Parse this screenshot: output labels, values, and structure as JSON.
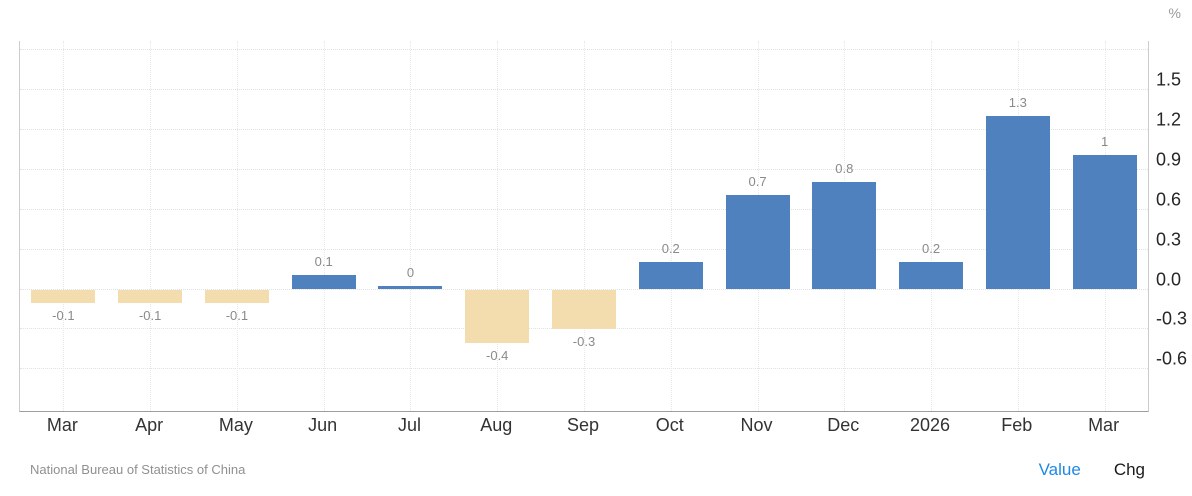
{
  "chart_data": {
    "type": "bar",
    "title": "",
    "unit": "%",
    "categories": [
      "Mar",
      "Apr",
      "May",
      "Jun",
      "Jul",
      "Aug",
      "Sep",
      "Oct",
      "Nov",
      "Dec",
      "2026",
      "Feb",
      "Mar"
    ],
    "values": [
      -0.1,
      -0.1,
      -0.1,
      0.1,
      0,
      -0.4,
      -0.3,
      0.2,
      0.7,
      0.8,
      0.2,
      1.3,
      1
    ],
    "bar_labels": [
      "-0.1",
      "-0.1",
      "-0.1",
      "0.1",
      "0",
      "-0.4",
      "-0.3",
      "0.2",
      "0.7",
      "0.8",
      "0.2",
      "1.3",
      "1"
    ],
    "y_tick_values": [
      1.5,
      1.2,
      0.9,
      0.6,
      0.3,
      0,
      -0.3,
      -0.6
    ],
    "y_gridline_values": [
      1.8,
      1.5,
      1.2,
      0.9,
      0.6,
      0.3,
      0,
      -0.3,
      -0.6
    ],
    "ylim": [
      -0.92,
      1.86
    ],
    "grid": "dotted",
    "legend_position": "none",
    "positive_color": "#4e81bd",
    "negative_color": "#f3dcae",
    "axis_side": "right"
  },
  "footer": {
    "source": "National Bureau of Statistics of China",
    "value_label": "Value",
    "chg_label": "Chg"
  }
}
